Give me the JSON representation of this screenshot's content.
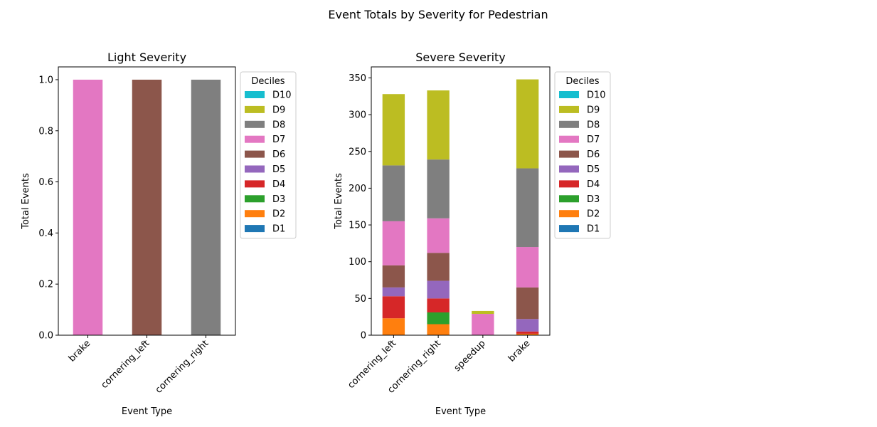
{
  "figure": {
    "suptitle": "Event Totals by Severity for Pedestrian"
  },
  "colors": {
    "D1": "#1f77b4",
    "D2": "#ff7f0e",
    "D3": "#2ca02c",
    "D4": "#d62728",
    "D5": "#9467bd",
    "D6": "#8c564b",
    "D7": "#e377c2",
    "D8": "#7f7f7f",
    "D9": "#bcbd22",
    "D10": "#17becf"
  },
  "chart_data": [
    {
      "type": "bar",
      "stacked": true,
      "title": "Light Severity",
      "xlabel": "Event Type",
      "ylabel": "Total Events",
      "ylim": [
        0,
        1.05
      ],
      "yticks": [
        "0.0",
        "0.2",
        "0.4",
        "0.6",
        "0.8",
        "1.0"
      ],
      "categories": [
        "brake",
        "cornering_left",
        "cornering_right"
      ],
      "legend_title": "Deciles",
      "legend_location": "outside-right-top",
      "legend_order": [
        "D10",
        "D9",
        "D8",
        "D7",
        "D6",
        "D5",
        "D4",
        "D3",
        "D2",
        "D1"
      ],
      "series": [
        {
          "name": "D1",
          "values": [
            0,
            0,
            0
          ]
        },
        {
          "name": "D2",
          "values": [
            0,
            0,
            0
          ]
        },
        {
          "name": "D3",
          "values": [
            0,
            0,
            0
          ]
        },
        {
          "name": "D4",
          "values": [
            0,
            0,
            0
          ]
        },
        {
          "name": "D5",
          "values": [
            0,
            0,
            0
          ]
        },
        {
          "name": "D6",
          "values": [
            0,
            1,
            0
          ]
        },
        {
          "name": "D7",
          "values": [
            1,
            0,
            0
          ]
        },
        {
          "name": "D8",
          "values": [
            0,
            0,
            1
          ]
        },
        {
          "name": "D9",
          "values": [
            0,
            0,
            0
          ]
        },
        {
          "name": "D10",
          "values": [
            0,
            0,
            0
          ]
        }
      ]
    },
    {
      "type": "bar",
      "stacked": true,
      "title": "Severe Severity",
      "xlabel": "Event Type",
      "ylabel": "Total Events",
      "ylim": [
        0,
        365
      ],
      "yticks": [
        "0",
        "50",
        "100",
        "150",
        "200",
        "250",
        "300",
        "350"
      ],
      "categories": [
        "cornering_left",
        "cornering_right",
        "speedup",
        "brake"
      ],
      "legend_title": "Deciles",
      "legend_location": "outside-right-top",
      "legend_order": [
        "D10",
        "D9",
        "D8",
        "D7",
        "D6",
        "D5",
        "D4",
        "D3",
        "D2",
        "D1"
      ],
      "series": [
        {
          "name": "D1",
          "values": [
            0,
            0,
            0,
            0
          ]
        },
        {
          "name": "D2",
          "values": [
            23,
            15,
            0,
            2
          ]
        },
        {
          "name": "D3",
          "values": [
            0,
            16,
            0,
            0
          ]
        },
        {
          "name": "D4",
          "values": [
            30,
            19,
            0,
            3
          ]
        },
        {
          "name": "D5",
          "values": [
            12,
            24,
            0,
            17
          ]
        },
        {
          "name": "D6",
          "values": [
            30,
            38,
            0,
            43
          ]
        },
        {
          "name": "D7",
          "values": [
            60,
            47,
            29,
            55
          ]
        },
        {
          "name": "D8",
          "values": [
            76,
            80,
            0,
            107
          ]
        },
        {
          "name": "D9",
          "values": [
            97,
            94,
            4,
            121
          ]
        },
        {
          "name": "D10",
          "values": [
            0,
            0,
            0,
            0
          ]
        }
      ]
    }
  ]
}
